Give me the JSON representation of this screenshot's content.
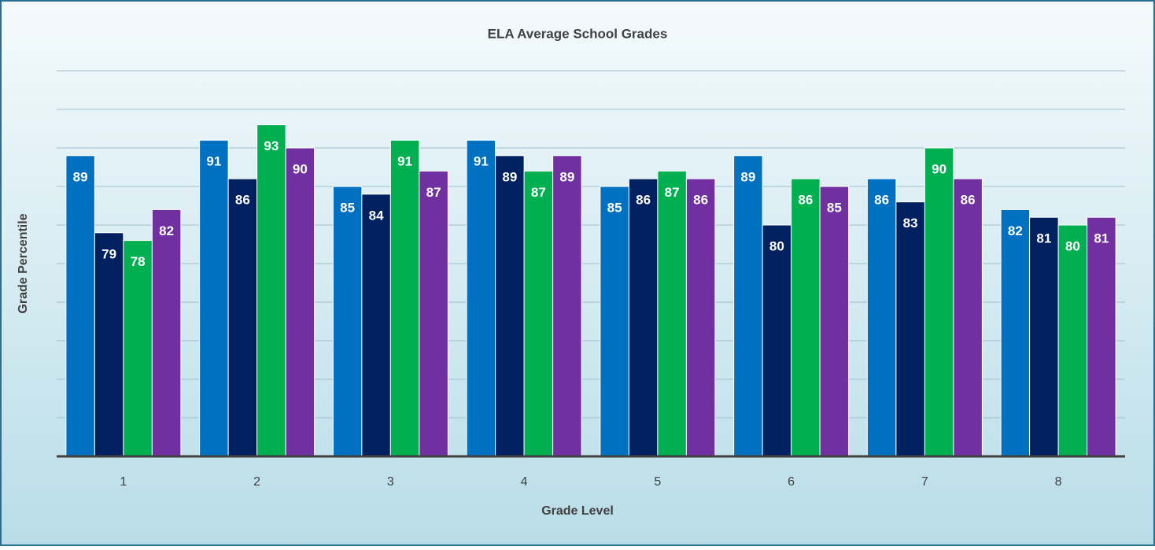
{
  "chart_data": {
    "type": "bar",
    "title": "ELA Average School Grades",
    "x_label": "Grade Level",
    "y_label": "Grade Percentile",
    "categories": [
      "1",
      "2",
      "3",
      "4",
      "5",
      "6",
      "7",
      "8"
    ],
    "series": [
      {
        "color": "#0070c0",
        "values": [
          89,
          91,
          85,
          91,
          85,
          89,
          86,
          82
        ]
      },
      {
        "color": "#002060",
        "values": [
          79,
          86,
          84,
          89,
          86,
          80,
          83,
          81
        ]
      },
      {
        "color": "#00b050",
        "values": [
          78,
          93,
          91,
          87,
          87,
          86,
          90,
          80
        ]
      },
      {
        "color": "#7030a0",
        "values": [
          82,
          90,
          87,
          89,
          86,
          85,
          86,
          81
        ]
      }
    ],
    "ylim": [
      50,
      100
    ],
    "yticks": [
      50,
      55,
      60,
      65,
      70,
      75,
      80,
      85,
      90,
      95,
      100
    ],
    "grid": true
  }
}
